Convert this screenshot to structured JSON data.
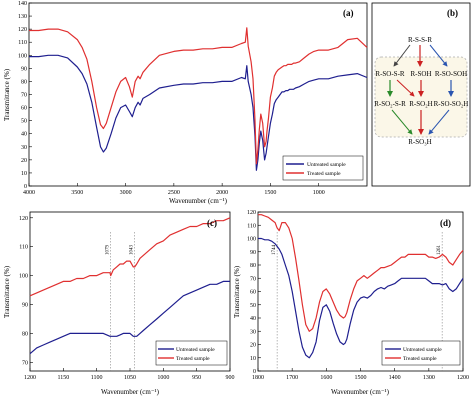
{
  "figure": {
    "panels": [
      "(a)",
      "(b)",
      "(c)",
      "(d)"
    ]
  },
  "colors": {
    "untreated": "#1f1f8f",
    "treated": "#e03030",
    "dash_box": "#999999",
    "arrow_dark": "#444444",
    "arrow_red": "#cc2222",
    "arrow_green": "#2a8a2a",
    "arrow_blue": "#2a55b0"
  },
  "chart_data": [
    {
      "type": "line",
      "panel": "(a)",
      "xlabel": "Wavenumber (cm⁻¹)",
      "ylabel": "Transmittance (%)",
      "xlim": [
        4000,
        500
      ],
      "ylim": [
        0,
        140
      ],
      "xticks": [
        4000,
        3500,
        3000,
        2500,
        2000,
        1500,
        1000
      ],
      "yticks": [
        0,
        10,
        20,
        30,
        40,
        50,
        60,
        70,
        80,
        90,
        100,
        110,
        120,
        130,
        140
      ],
      "legend": "bottom-right",
      "series": [
        {
          "name": "Untreated sample",
          "color": "untreated",
          "x": [
            4000,
            3900,
            3800,
            3700,
            3600,
            3500,
            3450,
            3400,
            3350,
            3300,
            3260,
            3230,
            3200,
            3150,
            3100,
            3050,
            3000,
            2960,
            2930,
            2900,
            2870,
            2850,
            2820,
            2750,
            2650,
            2500,
            2400,
            2300,
            2200,
            2100,
            2000,
            1900,
            1800,
            1760,
            1745,
            1730,
            1700,
            1680,
            1660,
            1645,
            1630,
            1615,
            1600,
            1580,
            1560,
            1545,
            1535,
            1520,
            1500,
            1480,
            1460,
            1440,
            1420,
            1400,
            1380,
            1360,
            1340,
            1320,
            1300,
            1280,
            1260,
            1240,
            1200,
            1150,
            1100,
            1050,
            1000,
            900,
            800,
            700,
            600,
            500
          ],
          "y": [
            99,
            99,
            100,
            100,
            98,
            91,
            86,
            78,
            64,
            45,
            30,
            26,
            29,
            40,
            52,
            60,
            62,
            57,
            53,
            60,
            64,
            62,
            67,
            70,
            75,
            77,
            78,
            78,
            79,
            79,
            80,
            80,
            83,
            82,
            92,
            80,
            70,
            60,
            38,
            12,
            20,
            33,
            42,
            35,
            20,
            25,
            30,
            38,
            48,
            55,
            63,
            66,
            68,
            70,
            72,
            72,
            73,
            73,
            74,
            74,
            74,
            75,
            76,
            78,
            80,
            81,
            82,
            82,
            84,
            85,
            86,
            83
          ]
        },
        {
          "name": "Treated sample",
          "color": "treated",
          "x": [
            4000,
            3900,
            3800,
            3700,
            3600,
            3500,
            3450,
            3400,
            3350,
            3300,
            3260,
            3230,
            3200,
            3150,
            3100,
            3050,
            3000,
            2960,
            2930,
            2900,
            2870,
            2850,
            2820,
            2750,
            2650,
            2500,
            2400,
            2300,
            2200,
            2100,
            2000,
            1900,
            1800,
            1760,
            1745,
            1730,
            1700,
            1680,
            1660,
            1645,
            1630,
            1615,
            1600,
            1580,
            1560,
            1545,
            1535,
            1520,
            1500,
            1480,
            1460,
            1440,
            1420,
            1400,
            1380,
            1360,
            1340,
            1320,
            1300,
            1280,
            1260,
            1240,
            1200,
            1150,
            1100,
            1050,
            1000,
            900,
            800,
            700,
            600,
            500
          ],
          "y": [
            119,
            119,
            120,
            120,
            118,
            112,
            106,
            97,
            80,
            60,
            47,
            44,
            48,
            60,
            72,
            80,
            83,
            76,
            68,
            80,
            84,
            82,
            87,
            93,
            100,
            103,
            104,
            104,
            105,
            105,
            106,
            106,
            109,
            110,
            121,
            107,
            95,
            82,
            50,
            17,
            28,
            43,
            55,
            48,
            30,
            34,
            42,
            52,
            68,
            75,
            84,
            87,
            89,
            90,
            91,
            92,
            92,
            93,
            93,
            93,
            94,
            94,
            95,
            98,
            101,
            103,
            104,
            104,
            106,
            112,
            113,
            106
          ]
        }
      ]
    },
    {
      "type": "line",
      "panel": "(c)",
      "xlabel": "Wavenumber (cm⁻¹)",
      "ylabel": "Transmittance (%)",
      "xlim": [
        1200,
        900
      ],
      "ylim": [
        67,
        122
      ],
      "xticks": [
        1200,
        1150,
        1100,
        1050,
        1000,
        950,
        900
      ],
      "yticks": [
        70,
        80,
        90,
        100,
        110,
        120
      ],
      "legend": "bottom-right",
      "annotations": [
        {
          "text": "1079",
          "x": 1079
        },
        {
          "text": "1043",
          "x": 1043
        }
      ],
      "series": [
        {
          "name": "Untreated sample",
          "color": "untreated",
          "x": [
            1200,
            1190,
            1180,
            1170,
            1160,
            1150,
            1140,
            1130,
            1120,
            1110,
            1100,
            1090,
            1080,
            1075,
            1070,
            1065,
            1060,
            1055,
            1050,
            1045,
            1040,
            1035,
            1030,
            1020,
            1010,
            1000,
            990,
            980,
            970,
            960,
            950,
            940,
            930,
            920,
            910,
            900
          ],
          "y": [
            73,
            75,
            76,
            77,
            78,
            79,
            80,
            80,
            80,
            80,
            80,
            80,
            79,
            79,
            79,
            79.5,
            80,
            80,
            80,
            79,
            79,
            80,
            81,
            83,
            85,
            87,
            89,
            91,
            93,
            94,
            95,
            96,
            97,
            97,
            98,
            98
          ]
        },
        {
          "name": "Treated sample",
          "color": "treated",
          "x": [
            1200,
            1190,
            1180,
            1170,
            1160,
            1150,
            1140,
            1130,
            1120,
            1110,
            1100,
            1090,
            1085,
            1080,
            1079,
            1075,
            1070,
            1065,
            1060,
            1055,
            1050,
            1045,
            1043,
            1040,
            1035,
            1030,
            1020,
            1010,
            1000,
            990,
            980,
            970,
            960,
            950,
            940,
            930,
            920,
            910,
            900
          ],
          "y": [
            93,
            94,
            95,
            96,
            97,
            98,
            98,
            99,
            99,
            100,
            100,
            101,
            101,
            101,
            100,
            102,
            103,
            104,
            104,
            105,
            105,
            103,
            103,
            104,
            106,
            107,
            109,
            111,
            112,
            114,
            115,
            116,
            117,
            117,
            118,
            118,
            119,
            119,
            120
          ]
        }
      ]
    },
    {
      "type": "line",
      "panel": "(d)",
      "xlabel": "Wavenumber (cm⁻¹)",
      "ylabel": "Transmittance (%)",
      "xlim": [
        1800,
        1200
      ],
      "ylim": [
        0,
        120
      ],
      "xticks": [
        1800,
        1700,
        1600,
        1500,
        1400,
        1300,
        1200
      ],
      "yticks": [
        0,
        10,
        20,
        30,
        40,
        50,
        60,
        70,
        80,
        90,
        100,
        110,
        120
      ],
      "legend": "bottom-right",
      "annotations": [
        {
          "text": "1744",
          "x": 1744
        },
        {
          "text": "1261",
          "x": 1261
        }
      ],
      "series": [
        {
          "name": "Untreated sample",
          "color": "untreated",
          "x": [
            1800,
            1790,
            1780,
            1770,
            1760,
            1750,
            1744,
            1738,
            1730,
            1720,
            1710,
            1700,
            1690,
            1680,
            1670,
            1660,
            1650,
            1640,
            1630,
            1620,
            1610,
            1600,
            1590,
            1580,
            1570,
            1560,
            1550,
            1545,
            1540,
            1530,
            1520,
            1510,
            1500,
            1490,
            1480,
            1470,
            1460,
            1450,
            1440,
            1430,
            1420,
            1410,
            1400,
            1390,
            1380,
            1370,
            1360,
            1350,
            1340,
            1330,
            1320,
            1310,
            1300,
            1290,
            1280,
            1270,
            1260,
            1250,
            1240,
            1230,
            1220,
            1210,
            1200
          ],
          "y": [
            100,
            100,
            99,
            99,
            98,
            96,
            94,
            92,
            88,
            80,
            72,
            60,
            45,
            30,
            18,
            12,
            10,
            14,
            22,
            38,
            48,
            50,
            45,
            36,
            28,
            22,
            20,
            21,
            24,
            36,
            46,
            52,
            55,
            56,
            55,
            57,
            60,
            62,
            63,
            62,
            64,
            65,
            66,
            68,
            70,
            70,
            70,
            70,
            70,
            70,
            70,
            70,
            68,
            66,
            66,
            66,
            65,
            66,
            62,
            60,
            62,
            66,
            70
          ]
        },
        {
          "name": "Treated sample",
          "color": "treated",
          "x": [
            1800,
            1790,
            1780,
            1770,
            1760,
            1750,
            1744,
            1738,
            1730,
            1720,
            1710,
            1700,
            1690,
            1680,
            1670,
            1660,
            1650,
            1640,
            1630,
            1620,
            1610,
            1600,
            1590,
            1580,
            1570,
            1560,
            1550,
            1545,
            1540,
            1530,
            1520,
            1510,
            1500,
            1490,
            1480,
            1470,
            1460,
            1450,
            1440,
            1430,
            1420,
            1410,
            1400,
            1390,
            1380,
            1370,
            1360,
            1350,
            1340,
            1330,
            1320,
            1310,
            1300,
            1290,
            1280,
            1270,
            1260,
            1250,
            1240,
            1230,
            1220,
            1210,
            1200
          ],
          "y": [
            118,
            118,
            117,
            116,
            114,
            112,
            108,
            106,
            112,
            112,
            108,
            100,
            85,
            68,
            50,
            35,
            30,
            32,
            40,
            52,
            60,
            62,
            58,
            52,
            46,
            42,
            40,
            41,
            44,
            54,
            62,
            68,
            70,
            72,
            70,
            72,
            74,
            76,
            78,
            78,
            79,
            80,
            82,
            84,
            86,
            86,
            88,
            88,
            88,
            88,
            88,
            88,
            86,
            86,
            85,
            86,
            88,
            86,
            82,
            80,
            84,
            88,
            91
          ]
        }
      ]
    }
  ],
  "scheme": {
    "panel": "(b)",
    "nodes": {
      "top": "R-S-S-R",
      "left": "R-SO-S-R",
      "center": "R-SOH",
      "right": "R-SO-SOH",
      "left2": "R-SO₂-S-R",
      "center2": "R-SO₂H",
      "right2": "R-SO-SO₂H",
      "bottom": "R-SO₃H"
    }
  }
}
